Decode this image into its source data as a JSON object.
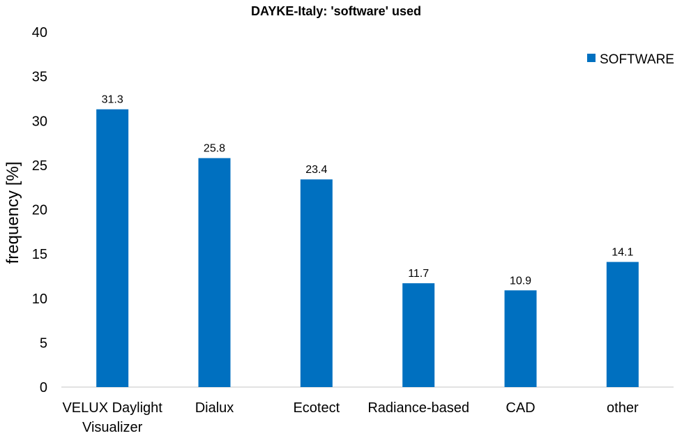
{
  "chart_data": {
    "type": "bar",
    "title": "DAYKE-Italy: 'software' used",
    "xlabel": "",
    "ylabel": "frequency  [%]",
    "categories": [
      [
        "VELUX Daylight",
        "Visualizer"
      ],
      [
        "Dialux"
      ],
      [
        "Ecotect"
      ],
      [
        "Radiance-based"
      ],
      [
        "CAD"
      ],
      [
        "other"
      ]
    ],
    "series": [
      {
        "name": "SOFTWARE",
        "color": "#0070C0",
        "values": [
          31.3,
          25.8,
          23.4,
          11.7,
          10.9,
          14.1
        ]
      }
    ],
    "data_labels": [
      "31.3",
      "25.8",
      "23.4",
      "11.7",
      "10.9",
      "14.1"
    ],
    "ylim": [
      0,
      40
    ],
    "yticks": [
      0,
      5,
      10,
      15,
      20,
      25,
      30,
      35,
      40
    ],
    "grid": false,
    "legend": "top-right"
  }
}
